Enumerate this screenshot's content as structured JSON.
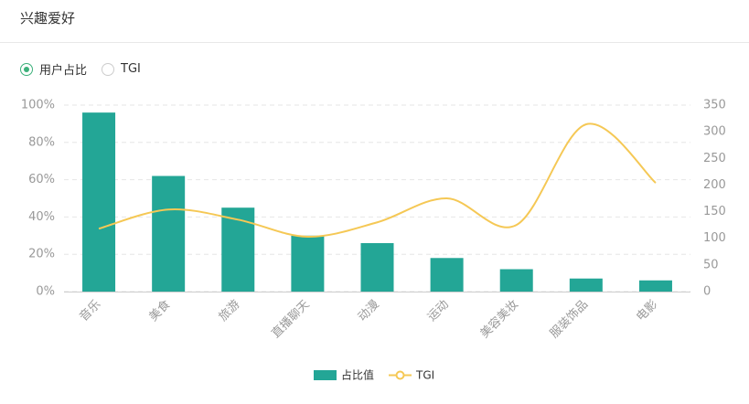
{
  "header": {
    "title": "兴趣爱好"
  },
  "radio_options": [
    "用户占比",
    "TGI"
  ],
  "selected_option": 0,
  "chart_data": {
    "type": "combo",
    "categories": [
      "音乐",
      "美食",
      "旅游",
      "直播聊天",
      "动漫",
      "运动",
      "美容美妆",
      "服装饰品",
      "电影"
    ],
    "series": [
      {
        "name": "占比值",
        "type": "bar",
        "color": "#23a696",
        "values": [
          96,
          62,
          45,
          30,
          26,
          18,
          12,
          7,
          6
        ]
      },
      {
        "name": "TGI",
        "type": "line",
        "axis": "y2",
        "color": "#f5c855",
        "values": [
          118,
          154,
          135,
          103,
          130,
          175,
          125,
          314,
          204
        ]
      }
    ],
    "ylim": [
      0,
      100
    ],
    "yticks": [
      {
        "value": 0,
        "label": "0%"
      },
      {
        "value": 20,
        "label": "20%"
      },
      {
        "value": 40,
        "label": "40%"
      },
      {
        "value": 60,
        "label": "60%"
      },
      {
        "value": 80,
        "label": "80%"
      },
      {
        "value": 100,
        "label": "100%"
      }
    ],
    "y2lim": [
      0,
      350
    ],
    "y2ticks": [
      0,
      50,
      100,
      150,
      200,
      250,
      300,
      350
    ],
    "grid": true
  }
}
